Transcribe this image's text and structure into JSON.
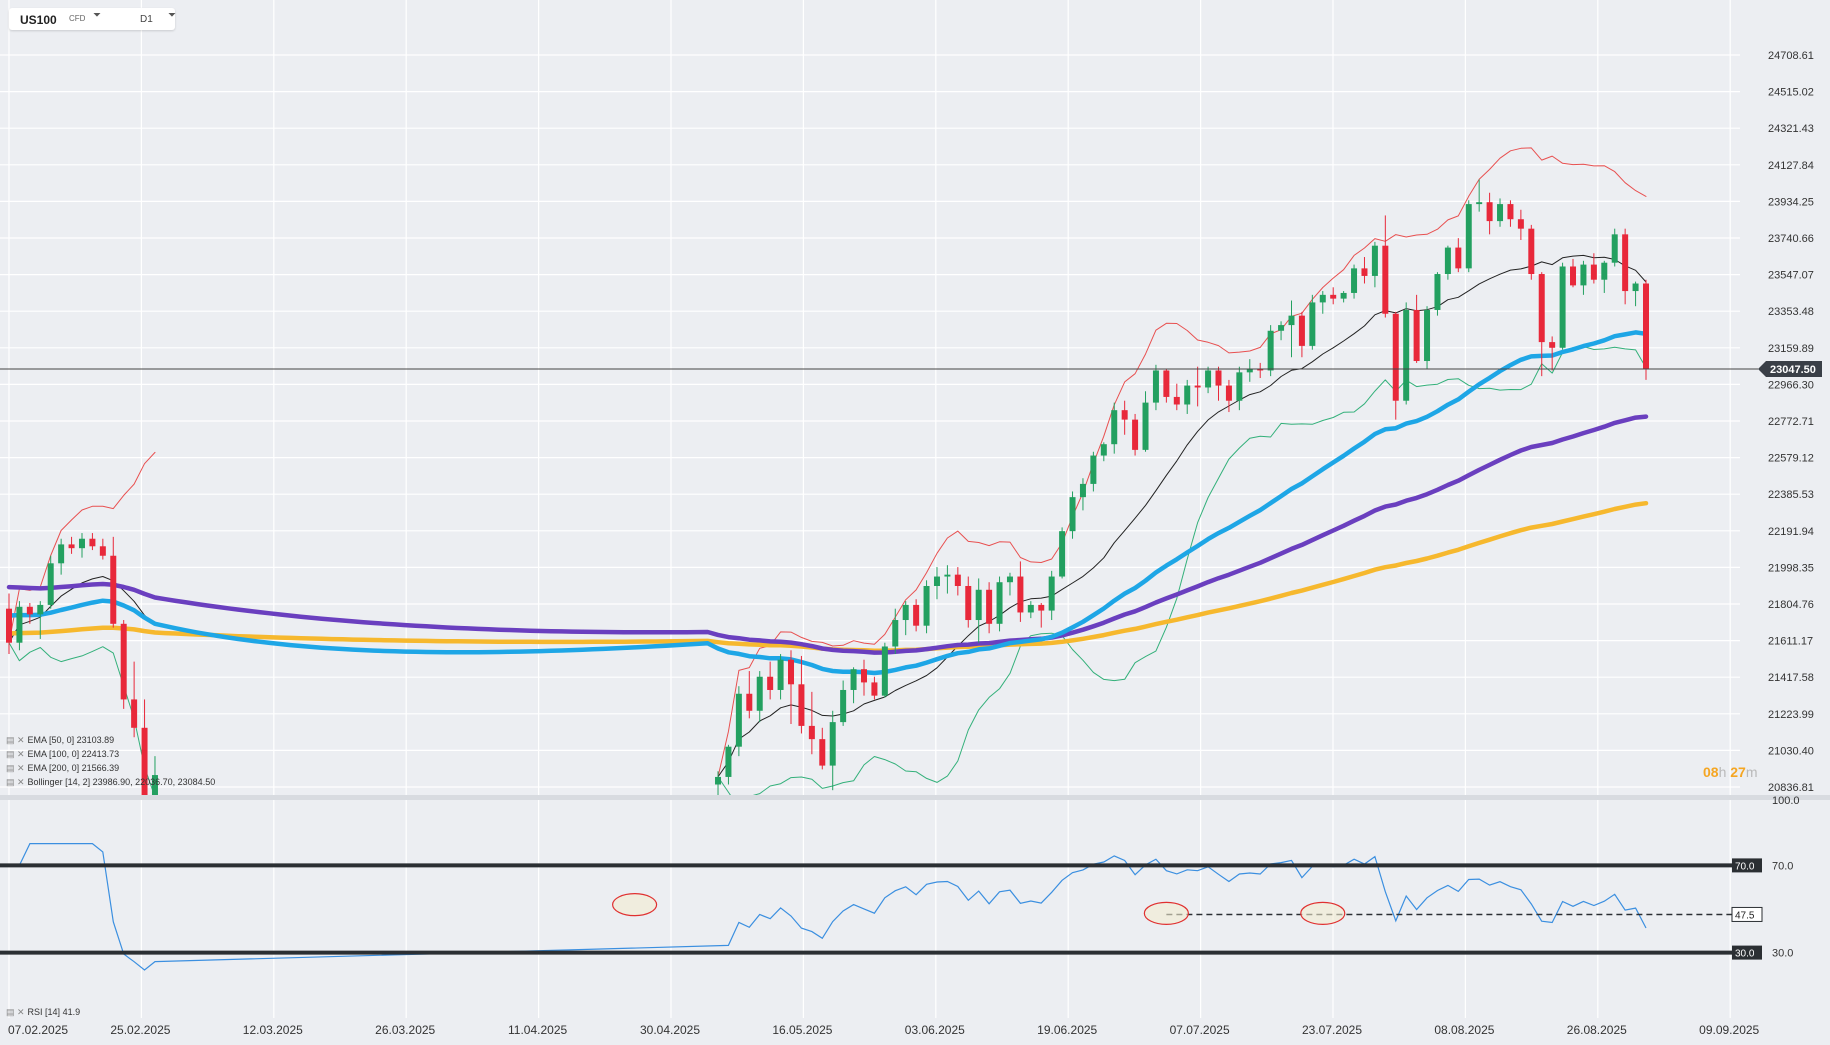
{
  "symbol": {
    "name": "US100",
    "type": "CFD",
    "timeframe": "D1"
  },
  "indicators": {
    "ema50": {
      "label": "EMA  [50, 0]  23103.89",
      "color": "#1ea6e6"
    },
    "ema100": {
      "label": "EMA  [100, 0]  22413.73",
      "color": "#6a3fbf"
    },
    "ema200": {
      "label": "EMA  [200, 0]  21566.39",
      "color": "#f6b82e"
    },
    "bollinger": {
      "label": "Bollinger  [14, 2]  23986.90,  22036.70,  23084.50",
      "upper_color": "#e85050",
      "lower_color": "#33b07a",
      "mid_color": "#222222"
    },
    "rsi": {
      "label": "RSI  [14]  41.9",
      "color": "#3b8fe0"
    }
  },
  "countdown": {
    "hours": "08",
    "h": "h",
    "minutes": "27",
    "m": "m"
  },
  "chart_data": {
    "type": "candlestick",
    "last_price": "23047.50",
    "y_ticks": [
      "24708.61",
      "24515.02",
      "24321.43",
      "24127.84",
      "23934.25",
      "23740.66",
      "23547.07",
      "23353.48",
      "23159.89",
      "22966.30",
      "22772.71",
      "22579.12",
      "22385.53",
      "22191.94",
      "21998.35",
      "21804.76",
      "21611.17",
      "21417.58",
      "21223.99",
      "21030.40",
      "20836.81"
    ],
    "x_ticks": [
      "07.02.2025",
      "25.02.2025",
      "12.03.2025",
      "26.03.2025",
      "11.04.2025",
      "30.04.2025",
      "16.05.2025",
      "03.06.2025",
      "19.06.2025",
      "07.07.2025",
      "23.07.2025",
      "08.08.2025",
      "26.08.2025",
      "09.09.2025"
    ],
    "candles_early": [
      [
        21780,
        21860,
        21540,
        21600
      ],
      [
        21600,
        21820,
        21560,
        21790
      ],
      [
        21790,
        21810,
        21700,
        21750
      ],
      [
        21750,
        21820,
        21620,
        21800
      ],
      [
        21800,
        22060,
        21780,
        22020
      ],
      [
        22020,
        22150,
        21960,
        22120
      ],
      [
        22120,
        22160,
        22070,
        22100
      ],
      [
        22100,
        22180,
        22050,
        22150
      ],
      [
        22150,
        22180,
        22090,
        22110
      ],
      [
        22110,
        22150,
        22040,
        22060
      ],
      [
        22060,
        22160,
        21680,
        21700
      ],
      [
        21700,
        21720,
        21250,
        21300
      ],
      [
        21300,
        21500,
        21100,
        21150
      ],
      [
        21150,
        21300,
        20700,
        20780
      ],
      [
        20780,
        21000,
        20600,
        20900
      ]
    ],
    "candles_late": [
      [
        20850,
        20920,
        20700,
        20890
      ],
      [
        20890,
        21060,
        20850,
        21050
      ],
      [
        21050,
        21370,
        21000,
        21330
      ],
      [
        21330,
        21450,
        21200,
        21240
      ],
      [
        21240,
        21450,
        21180,
        21420
      ],
      [
        21420,
        21500,
        21300,
        21350
      ],
      [
        21350,
        21540,
        21300,
        21510
      ],
      [
        21510,
        21560,
        21170,
        21380
      ],
      [
        21380,
        21530,
        21120,
        21160
      ],
      [
        21160,
        21340,
        21010,
        21090
      ],
      [
        21090,
        21150,
        20930,
        20950
      ],
      [
        20950,
        21240,
        20820,
        21180
      ],
      [
        21180,
        21400,
        21160,
        21350
      ],
      [
        21350,
        21470,
        21280,
        21460
      ],
      [
        21460,
        21510,
        21320,
        21390
      ],
      [
        21390,
        21420,
        21300,
        21320
      ],
      [
        21320,
        21600,
        21310,
        21580
      ],
      [
        21580,
        21780,
        21540,
        21720
      ],
      [
        21720,
        21820,
        21640,
        21800
      ],
      [
        21800,
        21830,
        21660,
        21690
      ],
      [
        21690,
        21930,
        21650,
        21900
      ],
      [
        21900,
        22000,
        21830,
        21950
      ],
      [
        21950,
        22010,
        21860,
        21960
      ],
      [
        21960,
        22000,
        21850,
        21900
      ],
      [
        21900,
        21950,
        21680,
        21720
      ],
      [
        21720,
        21940,
        21600,
        21880
      ],
      [
        21880,
        21920,
        21650,
        21700
      ],
      [
        21700,
        21950,
        21660,
        21920
      ],
      [
        21920,
        21970,
        21850,
        21950
      ],
      [
        21950,
        22030,
        21710,
        21760
      ],
      [
        21760,
        21820,
        21730,
        21800
      ],
      [
        21800,
        21810,
        21680,
        21770
      ],
      [
        21770,
        21980,
        21720,
        21950
      ],
      [
        21950,
        22210,
        21940,
        22190
      ],
      [
        22190,
        22400,
        22150,
        22370
      ],
      [
        22370,
        22470,
        22300,
        22440
      ],
      [
        22440,
        22610,
        22400,
        22590
      ],
      [
        22590,
        22660,
        22560,
        22650
      ],
      [
        22650,
        22870,
        22600,
        22830
      ],
      [
        22830,
        22880,
        22700,
        22780
      ],
      [
        22780,
        22810,
        22590,
        22620
      ],
      [
        22620,
        22930,
        22610,
        22870
      ],
      [
        22870,
        23070,
        22830,
        23040
      ],
      [
        23040,
        23050,
        22870,
        22900
      ],
      [
        22900,
        22970,
        22830,
        22860
      ],
      [
        22860,
        22990,
        22810,
        22960
      ],
      [
        22960,
        23060,
        22850,
        22950
      ],
      [
        22950,
        23060,
        22920,
        23040
      ],
      [
        23040,
        23060,
        22880,
        22960
      ],
      [
        22960,
        22990,
        22820,
        22880
      ],
      [
        22880,
        23060,
        22830,
        23030
      ],
      [
        23030,
        23100,
        22980,
        23050
      ],
      [
        23050,
        23080,
        23000,
        23040
      ],
      [
        23040,
        23280,
        23010,
        23250
      ],
      [
        23250,
        23300,
        23200,
        23280
      ],
      [
        23280,
        23410,
        23110,
        23330
      ],
      [
        23330,
        23350,
        23110,
        23170
      ],
      [
        23170,
        23440,
        23150,
        23400
      ],
      [
        23400,
        23460,
        23340,
        23440
      ],
      [
        23440,
        23480,
        23390,
        23420
      ],
      [
        23420,
        23460,
        23400,
        23450
      ],
      [
        23450,
        23600,
        23420,
        23580
      ],
      [
        23580,
        23640,
        23500,
        23540
      ],
      [
        23540,
        23720,
        23480,
        23700
      ],
      [
        23700,
        23860,
        23320,
        23340
      ],
      [
        23340,
        23350,
        22780,
        22880
      ],
      [
        22880,
        23400,
        22860,
        23360
      ],
      [
        23360,
        23440,
        23080,
        23090
      ],
      [
        23090,
        23380,
        23050,
        23360
      ],
      [
        23360,
        23560,
        23330,
        23550
      ],
      [
        23550,
        23700,
        23520,
        23690
      ],
      [
        23690,
        23740,
        23560,
        23580
      ],
      [
        23580,
        23940,
        23560,
        23920
      ],
      [
        23920,
        24050,
        23880,
        23930
      ],
      [
        23930,
        23980,
        23760,
        23830
      ],
      [
        23830,
        23950,
        23800,
        23920
      ],
      [
        23920,
        23940,
        23800,
        23840
      ],
      [
        23840,
        23890,
        23730,
        23790
      ],
      [
        23790,
        23810,
        23520,
        23550
      ],
      [
        23550,
        23560,
        23010,
        23190
      ],
      [
        23190,
        23220,
        23040,
        23160
      ],
      [
        23160,
        23610,
        23150,
        23590
      ],
      [
        23590,
        23630,
        23480,
        23490
      ],
      [
        23490,
        23620,
        23440,
        23600
      ],
      [
        23600,
        23660,
        23500,
        23520
      ],
      [
        23520,
        23620,
        23450,
        23610
      ],
      [
        23610,
        23790,
        23590,
        23760
      ],
      [
        23760,
        23790,
        23390,
        23460
      ],
      [
        23460,
        23510,
        23380,
        23500
      ],
      [
        23500,
        23520,
        22990,
        23047.5
      ]
    ],
    "rsi": {
      "levels": [
        70.0,
        47.5,
        30.0
      ],
      "axis_labels": [
        "100.0",
        "70.0",
        "30.0"
      ]
    }
  }
}
